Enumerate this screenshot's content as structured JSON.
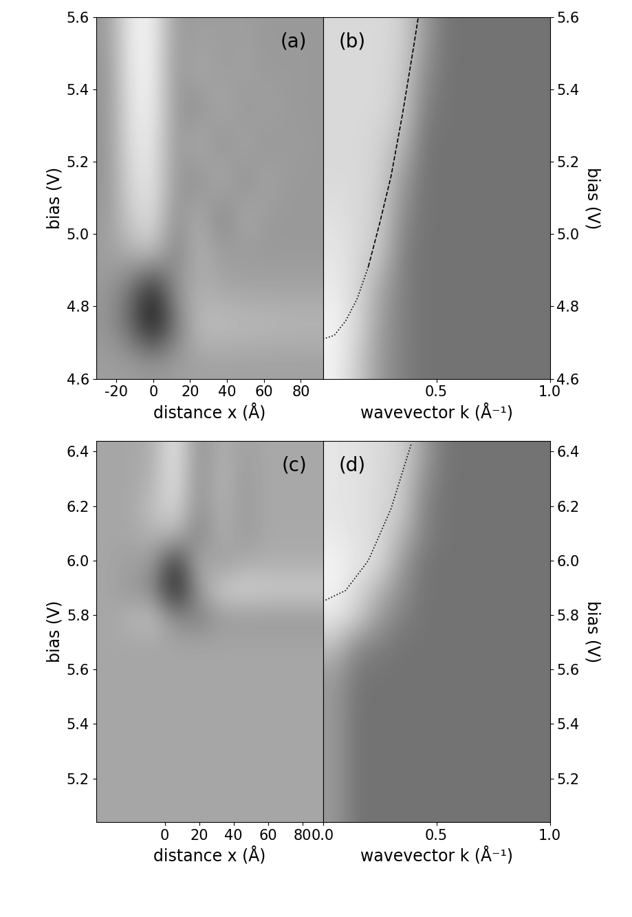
{
  "chart_data": [
    {
      "type": "heatmap",
      "label": "(a)",
      "xlabel": "distance x (Å)",
      "ylabel": "bias (V)",
      "xlim": [
        -31,
        92
      ],
      "ylim": [
        4.6,
        5.6
      ],
      "xticks": [
        -20,
        0,
        20,
        40,
        60,
        80
      ],
      "yticks": [
        4.6,
        4.8,
        {
          "value": 5.0,
          "label": "5.0"
        },
        5.2,
        5.4,
        5.6
      ],
      "extent": [
        -31,
        92,
        4.6,
        5.6
      ],
      "clim": [
        0,
        1
      ],
      "cells": [
        [
          0.62,
          0.62,
          0.6,
          0.62,
          0.63,
          0.63,
          0.63,
          0.63,
          0.63,
          0.63
        ],
        [
          0.58,
          0.4,
          0.05,
          0.45,
          0.75,
          0.75,
          0.74,
          0.73,
          0.72,
          0.72
        ],
        [
          0.6,
          0.45,
          0.15,
          0.6,
          0.68,
          0.65,
          0.64,
          0.64,
          0.64,
          0.64
        ],
        [
          0.62,
          0.7,
          0.78,
          0.5,
          0.7,
          0.62,
          0.6,
          0.6,
          0.6,
          0.6
        ],
        [
          0.6,
          0.8,
          0.88,
          0.55,
          0.7,
          0.5,
          0.68,
          0.6,
          0.6,
          0.6
        ],
        [
          0.58,
          0.85,
          0.9,
          0.6,
          0.55,
          0.7,
          0.55,
          0.65,
          0.6,
          0.6
        ],
        [
          0.58,
          0.88,
          0.92,
          0.58,
          0.7,
          0.55,
          0.66,
          0.58,
          0.62,
          0.6
        ],
        [
          0.58,
          0.9,
          0.94,
          0.6,
          0.55,
          0.68,
          0.58,
          0.64,
          0.6,
          0.6
        ],
        [
          0.58,
          0.92,
          0.95,
          0.58,
          0.68,
          0.6,
          0.64,
          0.6,
          0.61,
          0.6
        ],
        [
          0.6,
          0.93,
          0.95,
          0.6,
          0.62,
          0.62,
          0.62,
          0.6,
          0.6,
          0.6
        ]
      ]
    },
    {
      "type": "heatmap",
      "label": "(b)",
      "xlabel": "wavevector k (Å⁻¹)",
      "ylabel": "bias (V)",
      "xlim": [
        0,
        1
      ],
      "ylim": [
        4.6,
        5.6
      ],
      "xticks": [
        {
          "value": 0.5,
          "label": "0.5"
        },
        {
          "value": 1.0,
          "label": "1.0"
        }
      ],
      "yticks": [
        4.6,
        4.8,
        {
          "value": 5.0,
          "label": "5.0"
        },
        5.2,
        5.4,
        5.6
      ],
      "extent": [
        0,
        1,
        4.6,
        5.6
      ],
      "clim": [
        0,
        1
      ],
      "cells": [
        [
          0.95,
          0.8,
          0.6,
          0.5,
          0.45,
          0.45,
          0.45,
          0.45,
          0.45,
          0.45
        ],
        [
          0.95,
          0.85,
          0.62,
          0.5,
          0.45,
          0.45,
          0.45,
          0.45,
          0.45,
          0.45
        ],
        [
          0.92,
          0.85,
          0.65,
          0.5,
          0.45,
          0.45,
          0.45,
          0.45,
          0.45,
          0.45
        ],
        [
          0.9,
          0.85,
          0.78,
          0.5,
          0.45,
          0.45,
          0.45,
          0.45,
          0.45,
          0.45
        ],
        [
          0.88,
          0.85,
          0.8,
          0.55,
          0.45,
          0.45,
          0.45,
          0.45,
          0.45,
          0.45
        ],
        [
          0.85,
          0.85,
          0.82,
          0.6,
          0.45,
          0.45,
          0.45,
          0.45,
          0.45,
          0.45
        ],
        [
          0.85,
          0.85,
          0.82,
          0.72,
          0.45,
          0.45,
          0.45,
          0.45,
          0.45,
          0.45
        ],
        [
          0.85,
          0.85,
          0.85,
          0.78,
          0.5,
          0.45,
          0.45,
          0.45,
          0.45,
          0.45
        ],
        [
          0.85,
          0.85,
          0.85,
          0.8,
          0.55,
          0.45,
          0.45,
          0.45,
          0.45,
          0.45
        ],
        [
          0.85,
          0.85,
          0.85,
          0.82,
          0.6,
          0.45,
          0.45,
          0.45,
          0.45,
          0.45
        ]
      ],
      "series": [
        {
          "color": "#000000",
          "line_style": "dotted",
          "x": [
            0,
            0.05,
            0.1,
            0.15,
            0.2
          ],
          "values": [
            4.71,
            4.72,
            4.76,
            4.82,
            4.91
          ]
        },
        {
          "color": "#000000",
          "line_style": "dashed",
          "x": [
            0.2,
            0.25,
            0.3,
            0.35,
            0.4,
            0.42
          ],
          "values": [
            4.91,
            5.03,
            5.16,
            5.33,
            5.52,
            5.6
          ]
        }
      ]
    },
    {
      "type": "heatmap",
      "label": "(c)",
      "xlabel": "distance x (Å)",
      "ylabel": "bias (V)",
      "xlim": [
        -40,
        92
      ],
      "ylim": [
        5.04,
        6.44
      ],
      "xticks": [
        0,
        20,
        40,
        60,
        80
      ],
      "yticks": [
        5.2,
        5.4,
        5.6,
        5.8,
        {
          "value": 6.0,
          "label": "6.0"
        },
        6.2,
        6.4
      ],
      "extent": [
        -40,
        92,
        5.04,
        6.44
      ],
      "clim": [
        0,
        1
      ],
      "cells": [
        [
          0.65,
          0.65,
          0.65,
          0.65,
          0.65,
          0.65,
          0.65,
          0.65,
          0.65,
          0.65
        ],
        [
          0.65,
          0.65,
          0.65,
          0.65,
          0.65,
          0.65,
          0.65,
          0.65,
          0.65,
          0.65
        ],
        [
          0.65,
          0.65,
          0.65,
          0.65,
          0.65,
          0.65,
          0.65,
          0.65,
          0.65,
          0.65
        ],
        [
          0.65,
          0.65,
          0.65,
          0.65,
          0.65,
          0.65,
          0.65,
          0.65,
          0.65,
          0.65
        ],
        [
          0.65,
          0.65,
          0.65,
          0.65,
          0.65,
          0.65,
          0.65,
          0.65,
          0.65,
          0.65
        ],
        [
          0.65,
          0.65,
          0.65,
          0.65,
          0.65,
          0.65,
          0.65,
          0.65,
          0.65,
          0.65
        ],
        [
          0.65,
          0.65,
          0.65,
          0.65,
          0.65,
          0.65,
          0.65,
          0.65,
          0.65,
          0.65
        ],
        [
          0.65,
          0.7,
          0.75,
          0.55,
          0.5,
          0.6,
          0.6,
          0.6,
          0.6,
          0.6
        ],
        [
          0.65,
          0.6,
          0.55,
          0.1,
          0.6,
          0.8,
          0.82,
          0.8,
          0.8,
          0.8
        ],
        [
          0.65,
          0.62,
          0.6,
          0.2,
          0.7,
          0.6,
          0.68,
          0.68,
          0.68,
          0.68
        ],
        [
          0.65,
          0.65,
          0.7,
          0.7,
          0.5,
          0.7,
          0.6,
          0.66,
          0.66,
          0.66
        ],
        [
          0.65,
          0.65,
          0.75,
          0.85,
          0.55,
          0.7,
          0.6,
          0.66,
          0.66,
          0.66
        ],
        [
          0.65,
          0.65,
          0.7,
          0.9,
          0.55,
          0.72,
          0.6,
          0.66,
          0.66,
          0.66
        ],
        [
          0.65,
          0.65,
          0.68,
          0.92,
          0.55,
          0.7,
          0.62,
          0.66,
          0.66,
          0.66
        ]
      ]
    },
    {
      "type": "heatmap",
      "label": "(d)",
      "xlabel": "wavevector k (Å⁻¹)",
      "ylabel": "bias (V)",
      "xlim": [
        0,
        1
      ],
      "ylim": [
        5.04,
        6.44
      ],
      "xticks": [
        {
          "value": 0,
          "label": "0.0"
        },
        {
          "value": 0.5,
          "label": "0.5"
        },
        {
          "value": 1.0,
          "label": "1.0"
        }
      ],
      "yticks": [
        5.2,
        5.4,
        5.6,
        5.8,
        {
          "value": 6.0,
          "label": "6.0"
        },
        6.2,
        6.4
      ],
      "extent": [
        0,
        1,
        5.04,
        6.44
      ],
      "clim": [
        0,
        1
      ],
      "cells": [
        [
          0.6,
          0.45,
          0.45,
          0.45,
          0.45,
          0.45,
          0.45,
          0.45,
          0.45,
          0.45
        ],
        [
          0.6,
          0.45,
          0.45,
          0.45,
          0.45,
          0.45,
          0.45,
          0.45,
          0.45,
          0.45
        ],
        [
          0.6,
          0.45,
          0.45,
          0.45,
          0.45,
          0.45,
          0.45,
          0.45,
          0.45,
          0.45
        ],
        [
          0.6,
          0.45,
          0.45,
          0.45,
          0.45,
          0.45,
          0.45,
          0.45,
          0.45,
          0.45
        ],
        [
          0.6,
          0.45,
          0.45,
          0.45,
          0.45,
          0.45,
          0.45,
          0.45,
          0.45,
          0.45
        ],
        [
          0.62,
          0.47,
          0.45,
          0.45,
          0.45,
          0.45,
          0.45,
          0.45,
          0.45,
          0.45
        ],
        [
          0.75,
          0.55,
          0.5,
          0.45,
          0.45,
          0.45,
          0.45,
          0.45,
          0.45,
          0.45
        ],
        [
          0.9,
          0.8,
          0.6,
          0.5,
          0.45,
          0.45,
          0.45,
          0.45,
          0.45,
          0.45
        ],
        [
          0.95,
          0.85,
          0.7,
          0.55,
          0.45,
          0.45,
          0.45,
          0.45,
          0.45,
          0.45
        ],
        [
          0.95,
          0.9,
          0.85,
          0.6,
          0.45,
          0.45,
          0.45,
          0.45,
          0.45,
          0.45
        ],
        [
          0.92,
          0.88,
          0.85,
          0.7,
          0.5,
          0.45,
          0.45,
          0.45,
          0.45,
          0.45
        ],
        [
          0.9,
          0.88,
          0.85,
          0.78,
          0.5,
          0.45,
          0.45,
          0.45,
          0.45,
          0.45
        ],
        [
          0.9,
          0.88,
          0.85,
          0.8,
          0.55,
          0.45,
          0.45,
          0.45,
          0.45,
          0.45
        ],
        [
          0.9,
          0.88,
          0.85,
          0.82,
          0.6,
          0.45,
          0.45,
          0.45,
          0.45,
          0.45
        ]
      ],
      "series": [
        {
          "color": "#000000",
          "line_style": "dotted",
          "x": [
            0,
            0.1,
            0.2,
            0.3,
            0.39
          ],
          "values": [
            5.85,
            5.89,
            6.0,
            6.19,
            6.43
          ]
        }
      ]
    }
  ]
}
